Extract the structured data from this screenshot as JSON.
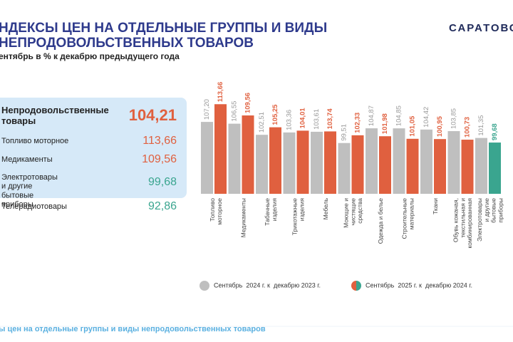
{
  "header": {
    "title_lines": [
      "НДЕКСЫ ЦЕН НА ОТДЕЛЬНЫЕ ГРУППЫ И ВИДЫ",
      "НЕПРОДОВОЛЬСТВЕННЫХ ТОВАРОВ"
    ],
    "subtitle": "ентябрь в % к декабрю предыдущего года",
    "logo": "САРАТОВС"
  },
  "panel": {
    "title": "Непродовольственные товары",
    "value": "104,21",
    "rows": [
      {
        "label": "Топливо моторное",
        "value": "113,66",
        "color": "#e0603f"
      },
      {
        "label": "Медикаменты",
        "value": "109,56",
        "color": "#e0603f"
      },
      {
        "label": "Электротовары и другие бытовые приборы",
        "value": "99,68",
        "color": "#3aa58f"
      },
      {
        "label": "Телерадиотовары",
        "value": "92,86",
        "color": "#3aa58f"
      }
    ]
  },
  "footer": "ы цен на отдельные группы и виды непродовольственных товаров",
  "chart_data": {
    "type": "bar",
    "categories": [
      "Топливо моторное",
      "Медикаменты",
      "Табачные изделия",
      "Трикотажные изделия",
      "Мебель",
      "Моющие и чистящие средства",
      "Одежда и белье",
      "Строительные материалы",
      "Ткани",
      "Обувь кожаная, текстильная и комбинированная",
      "Электротовары и другие бытовые приборы"
    ],
    "ylim": [
      81,
      114.5
    ],
    "series": [
      {
        "name": "Сентябрь  2024 г. к  декабрю 2023 г.",
        "color": "#bfbfbf",
        "values": [
          107.2,
          106.55,
          102.51,
          103.36,
          103.61,
          99.51,
          104.87,
          104.85,
          104.42,
          103.85,
          101.35
        ],
        "value_labels": [
          "107,20",
          "106,55",
          "102,51",
          "103,36",
          "103,61",
          "99,51",
          "104,87",
          "104,85",
          "104,42",
          "103,85",
          "101,35"
        ]
      },
      {
        "name": "Сентябрь  2025 г. к  декабрю 2024 г.",
        "colors": [
          "#e0603f",
          "#e0603f",
          "#e0603f",
          "#e0603f",
          "#e0603f",
          "#e0603f",
          "#e0603f",
          "#e0603f",
          "#e0603f",
          "#e0603f",
          "#3aa58f"
        ],
        "values": [
          113.66,
          109.56,
          105.25,
          104.01,
          103.74,
          102.33,
          101.98,
          101.05,
          100.95,
          100.73,
          99.68
        ],
        "value_labels": [
          "113,66",
          "109,56",
          "105,25",
          "104,01",
          "103,74",
          "102,33",
          "101,98",
          "101,05",
          "100,95",
          "100,73",
          "99,68"
        ]
      }
    ]
  }
}
